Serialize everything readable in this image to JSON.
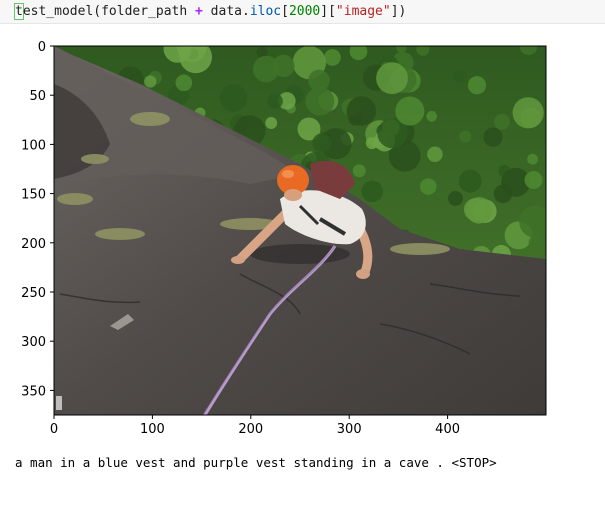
{
  "code_cell": {
    "parts": [
      {
        "text": "t",
        "cls": "cursor-box"
      },
      {
        "text": "est_model(folder_path ",
        "cls": ""
      },
      {
        "text": "+",
        "cls": "tok-op"
      },
      {
        "text": " data",
        "cls": ""
      },
      {
        "text": ".",
        "cls": ""
      },
      {
        "text": "iloc",
        "cls": "tok-attr"
      },
      {
        "text": "[",
        "cls": ""
      },
      {
        "text": "2000",
        "cls": "tok-num"
      },
      {
        "text": "][",
        "cls": ""
      },
      {
        "text": "\"image\"",
        "cls": "tok-str"
      },
      {
        "text": "])",
        "cls": ""
      }
    ]
  },
  "plot": {
    "xlim": [
      0,
      500
    ],
    "ylim": [
      375,
      0
    ],
    "xticks": [
      0,
      100,
      200,
      300,
      400
    ],
    "yticks": [
      0,
      50,
      100,
      150,
      200,
      250,
      300,
      350
    ],
    "image": {
      "description_icon": "rock-climber-photo",
      "colors": {
        "rock": "#4e4a47",
        "rock_light": "#6b6662",
        "forest": "#2f5e22",
        "forest_light": "#5a8f35",
        "helmet": "#e8611c",
        "shirt": "#e9e6e2",
        "skin": "#d9a98a",
        "rope": "#b79ac9",
        "grass": "#9a9a6a"
      }
    }
  },
  "output": {
    "caption": "a man in a blue vest and purple vest standing in a cave . <STOP>"
  }
}
